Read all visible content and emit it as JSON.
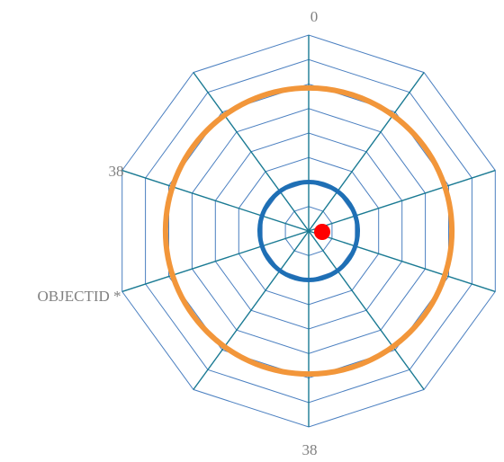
{
  "chart_data": {
    "type": "radar",
    "axes_count": 10,
    "grid_levels": 8,
    "grid_shape": "decagon",
    "grid_color": "#4a7fc0",
    "spoke_color": "#1a7a93",
    "labels": [
      {
        "text": "0",
        "position": "top"
      },
      {
        "text": "38",
        "position": "upper-left"
      },
      {
        "text": "OBJECTID *",
        "position": "left"
      },
      {
        "text": "38",
        "position": "bottom"
      }
    ],
    "rings": [
      {
        "name": "",
        "radius_fraction": 0.73,
        "color": "#f2963a"
      },
      {
        "name": "",
        "radius_fraction": 0.25,
        "color": "#1e6fb5"
      }
    ],
    "points": [
      {
        "angle_deg": 90,
        "radius_fraction": 0.05,
        "color": "#ff0000"
      }
    ]
  }
}
